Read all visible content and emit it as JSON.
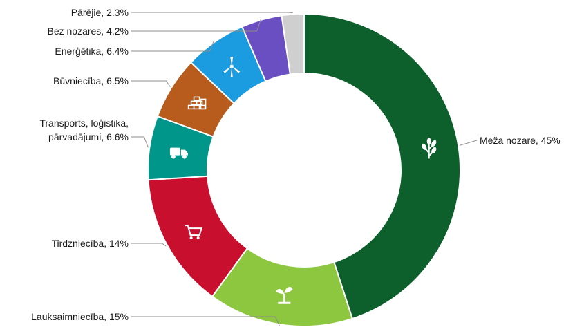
{
  "chart_data": {
    "type": "pie",
    "variant": "donut",
    "title": "",
    "unit": "%",
    "slices": [
      {
        "label": "Meža nozare, 45%",
        "value": 45,
        "color": "#0d5f2c",
        "icon": "tree-branch-icon"
      },
      {
        "label": "Lauksaimniecība, 15%",
        "value": 15,
        "color": "#8dc63f",
        "icon": "sprout-icon"
      },
      {
        "label": "Tirdzniecība, 14%",
        "value": 14,
        "color": "#c8102e",
        "icon": "shopping-cart-icon"
      },
      {
        "label_lines": [
          "Transports, loģistika,",
          "pārvadājumi, 6.6%"
        ],
        "value": 6.6,
        "color": "#00968a",
        "icon": "truck-icon"
      },
      {
        "label": "Būvniecība, 6.5%",
        "value": 6.5,
        "color": "#b85c1e",
        "icon": "bricks-icon"
      },
      {
        "label": "Enerģētika, 6.4%",
        "value": 6.4,
        "color": "#1b9be0",
        "icon": "wind-turbine-icon"
      },
      {
        "label": "Bez nozares, 4.2%",
        "value": 4.2,
        "color": "#6a4fc3",
        "icon": ""
      },
      {
        "label": "Pārējie, 2.3%",
        "value": 2.3,
        "color": "#cfcfcf",
        "icon": ""
      }
    ]
  }
}
